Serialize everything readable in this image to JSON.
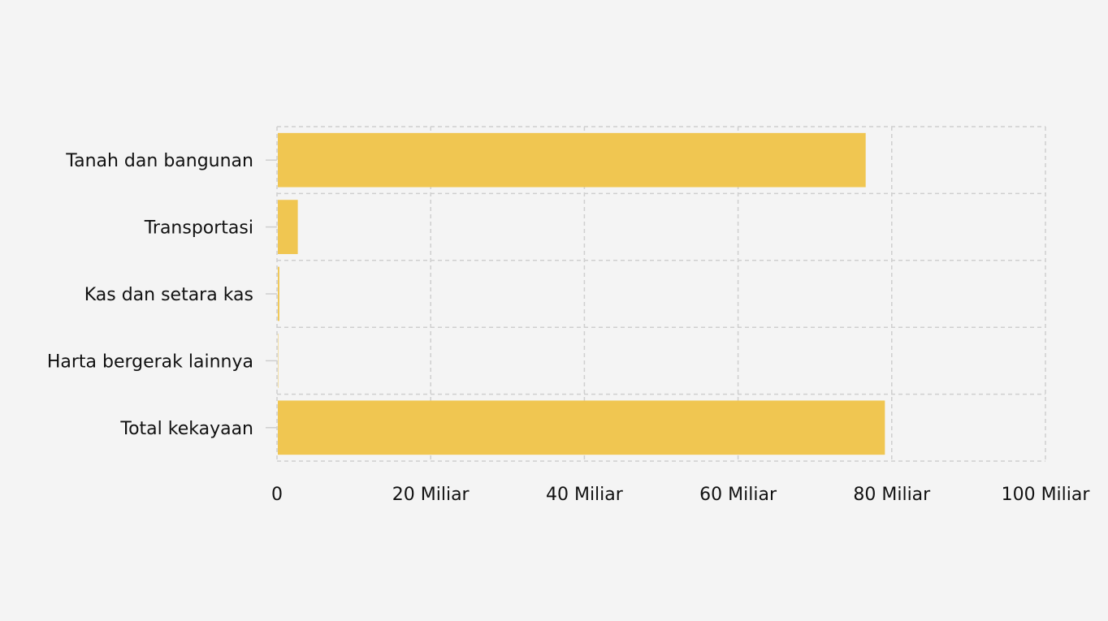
{
  "chart_data": {
    "type": "bar",
    "orientation": "horizontal",
    "categories": [
      "Tanah dan bangunan",
      "Transportasi",
      "Kas dan setara kas",
      "Harta bergerak lainnya",
      "Total kekayaan"
    ],
    "values": [
      76.5,
      2.6,
      0.2,
      0.05,
      79.0
    ],
    "value_unit": "Miliar",
    "xlim": [
      0,
      100
    ],
    "xticks": [
      0,
      20,
      40,
      60,
      80,
      100
    ],
    "xtick_labels": [
      "0",
      "20 Miliar",
      "40 Miliar",
      "60 Miliar",
      "80 Miliar",
      "100 Miliar"
    ],
    "title": "",
    "xlabel": "",
    "ylabel": "",
    "grid": true,
    "bar_color": "#f0c651"
  }
}
